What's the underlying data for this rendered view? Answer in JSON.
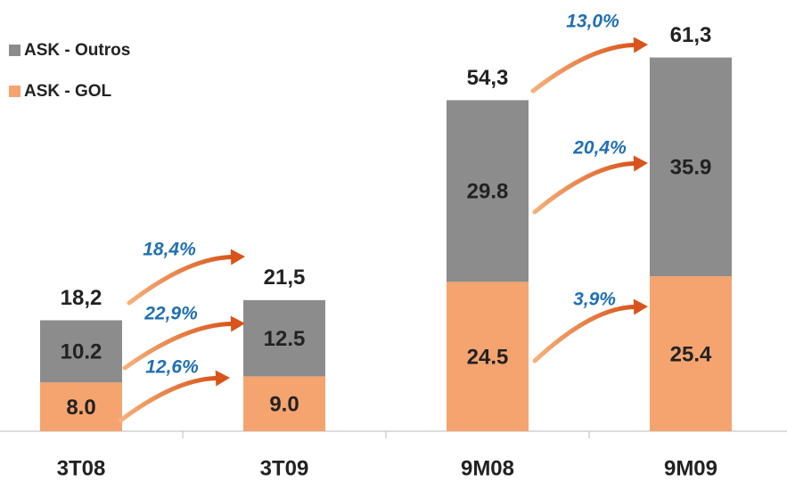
{
  "chart_data": {
    "type": "stacked_bar",
    "categories": [
      "3T08",
      "3T09",
      "9M08",
      "9M09"
    ],
    "series": [
      {
        "name": "ASK - GOL",
        "color": "#f5a46f",
        "values": [
          8.0,
          9.0,
          24.5,
          25.4
        ],
        "value_labels": [
          "8.0",
          "9.0",
          "24.5",
          "25.4"
        ]
      },
      {
        "name": "ASK - Outros",
        "color": "#8c8c8c",
        "values": [
          10.2,
          12.5,
          29.8,
          35.9
        ],
        "value_labels": [
          "10.2",
          "12.5",
          "29.8",
          "35.9"
        ]
      }
    ],
    "totals": [
      18.2,
      21.5,
      54.3,
      61.3
    ],
    "total_labels": [
      "18,2",
      "21,5",
      "54,3",
      "61,3"
    ],
    "annotations": [
      "18,4%",
      "22,9%",
      "12,6%",
      "13,0%",
      "20,4%",
      "3,9%"
    ],
    "ylim": [
      0,
      70
    ],
    "legend": "top-left"
  }
}
